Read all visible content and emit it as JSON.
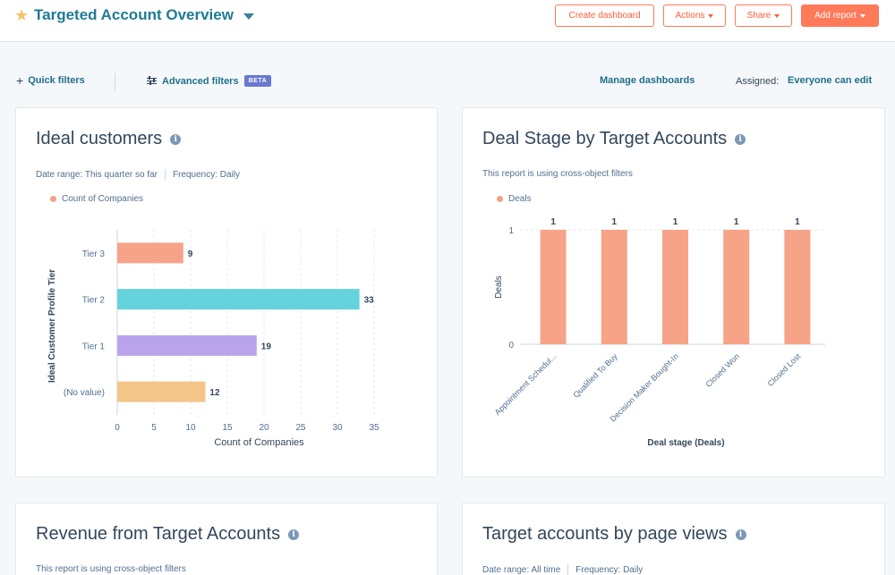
{
  "header": {
    "title": "Targeted Account Overview",
    "buttons": {
      "create_dashboard": "Create dashboard",
      "actions": "Actions",
      "share": "Share",
      "add_report": "Add report"
    }
  },
  "filters": {
    "quick_filters": "Quick filters",
    "advanced_filters": "Advanced filters",
    "beta_badge": "BETA",
    "manage_dashboards": "Manage dashboards",
    "assigned_label": "Assigned:",
    "assigned_value": "Everyone can edit"
  },
  "colors": {
    "accent": "#ff7a59",
    "link": "#1f6f8b",
    "tier3": "#f7a388",
    "tier2": "#64d3dc",
    "tier1": "#b9a4eb",
    "no_value": "#f3c589",
    "deals": "#f7a388"
  },
  "cards": {
    "ideal": {
      "title": "Ideal customers",
      "date_range": "Date range: This quarter so far",
      "frequency": "Frequency: Daily",
      "legend": "Count of Companies"
    },
    "deal_stage": {
      "title": "Deal Stage by Target Accounts",
      "note": "This report is using cross-object filters",
      "legend": "Deals"
    },
    "revenue": {
      "title": "Revenue from Target Accounts",
      "note": "This report is using cross-object filters"
    },
    "page_views": {
      "title": "Target accounts by page views",
      "date_range": "Date range: All time",
      "frequency": "Frequency: Daily"
    }
  },
  "chart_data": [
    {
      "type": "bar",
      "orientation": "horizontal",
      "categories": [
        "Tier 3",
        "Tier 2",
        "Tier 1",
        "(No value)"
      ],
      "values": [
        9,
        33,
        19,
        12
      ],
      "value_labels": [
        "9",
        "33",
        "19",
        "12"
      ],
      "xlabel": "Count of Companies",
      "ylabel": "Ideal Customer Profile Tier",
      "xlim": [
        0,
        35
      ],
      "xticks": [
        "0",
        "5",
        "10",
        "15",
        "20",
        "25",
        "30",
        "35"
      ],
      "grid": true
    },
    {
      "type": "bar",
      "categories": [
        "Appointment Schedul...",
        "Qualified To Buy",
        "Decision Maker Bought-In",
        "Closed Won",
        "Closed Lost"
      ],
      "values": [
        1,
        1,
        1,
        1,
        1
      ],
      "value_labels": [
        "1",
        "1",
        "1",
        "1",
        "1"
      ],
      "xlabel": "Deal stage (Deals)",
      "ylabel": "Deals",
      "ylim": [
        0,
        1
      ],
      "yticks": [
        "0",
        "1"
      ],
      "grid": true
    }
  ]
}
